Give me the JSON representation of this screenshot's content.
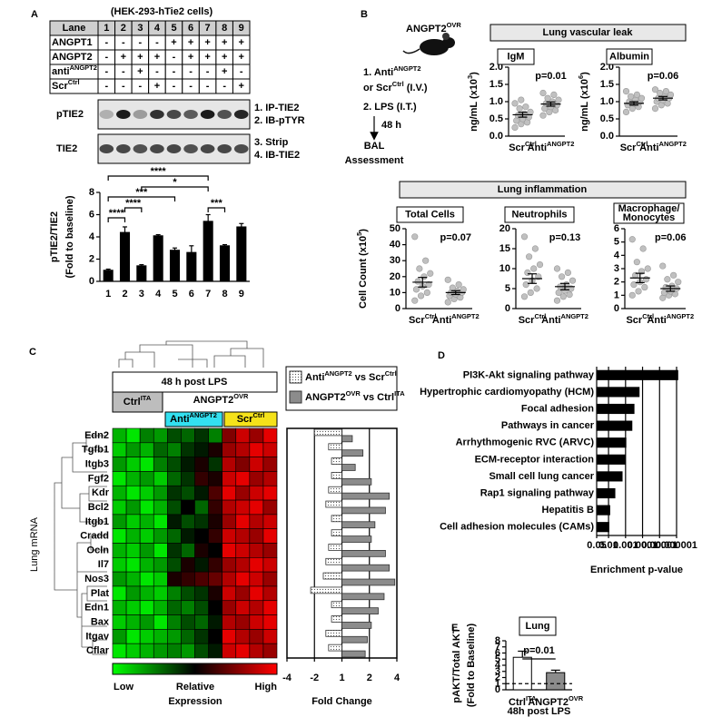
{
  "panel_labels": [
    "A",
    "B",
    "C",
    "D",
    "E"
  ],
  "panel_a": {
    "title": "(HEK-293-hTie2 cells)",
    "table": {
      "header": "Lane",
      "lanes": [
        "1",
        "2",
        "3",
        "4",
        "5",
        "6",
        "7",
        "8",
        "9"
      ],
      "rows": [
        {
          "label": "ANGPT1",
          "cells": [
            "-",
            "-",
            "-",
            "-",
            "+",
            "+",
            "+",
            "+",
            "+"
          ]
        },
        {
          "label": "ANGPT2",
          "cells": [
            "-",
            "+",
            "+",
            "+",
            "-",
            "+",
            "+",
            "+",
            "+"
          ]
        },
        {
          "label": {
            "text": "anti",
            "sup": "ANGPT2"
          },
          "cells": [
            "-",
            "-",
            "+",
            "-",
            "-",
            "-",
            "-",
            "+",
            "-"
          ]
        },
        {
          "label": {
            "text": "Scr",
            "sup": "Ctrl"
          },
          "cells": [
            "-",
            "-",
            "-",
            "+",
            "-",
            "-",
            "-",
            "-",
            "+"
          ]
        }
      ]
    },
    "blots": [
      {
        "label": "pTIE2",
        "steps": [
          "1. IP-TIE2",
          "2. IB-pTYR"
        ]
      },
      {
        "label": "TIE2",
        "steps": [
          "3. Strip",
          "4. IB-TIE2"
        ]
      }
    ]
  },
  "panel_b": {
    "model": {
      "text": "ANGPT2",
      "sup": "OVR"
    },
    "steps": [
      {
        "text": "1. Anti",
        "sup": "ANGPT2"
      },
      {
        "text": "or Scr",
        "sup": "Ctrl",
        "tail": " (I.V.)"
      },
      "2. LPS (I.T.)"
    ],
    "interval": "48 h",
    "outcome": [
      "BAL",
      "Assessment"
    ],
    "groups": [
      "Lung vascular leak",
      "Lung inflammation"
    ]
  },
  "panel_c": {
    "title": "48 h post LPS",
    "groups": [
      {
        "text": "Ctrl",
        "sup": "ITA"
      },
      {
        "text": "ANGPT2",
        "sup": "OVR"
      },
      {
        "text": "Anti",
        "sup": "ANGPT2"
      },
      {
        "text": "Scr",
        "sup": "Ctrl"
      }
    ],
    "ylabel": "Lung mRNA",
    "scale": [
      "Low",
      "Relative",
      "Expression",
      "High"
    ]
  },
  "chart_data": [
    {
      "type": "bar",
      "ylabel": "pTIE2/TIE2",
      "ylabel2": "(Fold to baseline)",
      "categories": [
        "1",
        "2",
        "3",
        "4",
        "5",
        "6",
        "7",
        "8",
        "9"
      ],
      "values": [
        1.0,
        4.4,
        1.4,
        4.1,
        2.8,
        2.6,
        5.4,
        3.2,
        4.9
      ],
      "errors": [
        0.1,
        0.5,
        0.1,
        0.1,
        0.2,
        0.6,
        0.6,
        0.1,
        0.3
      ],
      "color": "#000000",
      "ylim": [
        0,
        8
      ],
      "yticks": [
        0,
        2,
        4,
        6,
        8
      ],
      "annotations": [
        "****",
        "*",
        "***",
        "****",
        "****",
        "***"
      ]
    },
    {
      "type": "dot",
      "title": "IgM",
      "annotation": "p=0.01",
      "ylabel": {
        "text": "ng/mL (x10",
        "sup": "3",
        "tail": ")"
      },
      "categories": [
        {
          "text": "Scr",
          "sup": "Ctrl"
        },
        {
          "text": "Anti",
          "sup": "ANGPT2"
        }
      ],
      "values": [
        [
          0.25,
          0.35,
          0.4,
          0.45,
          0.5,
          0.55,
          0.6,
          0.65,
          0.7,
          0.8,
          0.85,
          0.95,
          1.05
        ],
        [
          0.6,
          0.7,
          0.75,
          0.8,
          0.85,
          0.9,
          0.95,
          1.0,
          1.05,
          1.1,
          1.2,
          1.25
        ]
      ],
      "means": [
        0.62,
        0.93
      ],
      "sems": [
        0.07,
        0.06
      ],
      "color": "#c0c0c0",
      "mean_color": "#e0201a",
      "ylim": [
        0,
        2
      ],
      "yticks": [
        {
          "value": 0,
          "label": "0.0"
        },
        0.5,
        {
          "value": 1,
          "label": "1.0"
        },
        1.5,
        {
          "value": 2,
          "label": "2.0"
        }
      ]
    },
    {
      "type": "dot",
      "title": "Albumin",
      "annotation": "p=0.06",
      "ylabel": {
        "text": "ng/mL (x10",
        "sup": "6",
        "tail": ")"
      },
      "categories": [
        {
          "text": "Scr",
          "sup": "Ctrl"
        },
        {
          "text": "Anti",
          "sup": "ANGPT2"
        }
      ],
      "values": [
        [
          0.7,
          0.8,
          0.85,
          0.9,
          0.95,
          1.0,
          1.0,
          1.05,
          1.1,
          1.15,
          1.2,
          1.3
        ],
        [
          0.8,
          0.9,
          0.95,
          1.0,
          1.05,
          1.1,
          1.1,
          1.15,
          1.2,
          1.25,
          1.3,
          1.35
        ]
      ],
      "means": [
        0.95,
        1.1
      ],
      "sems": [
        0.05,
        0.05
      ],
      "color": "#c0c0c0",
      "mean_color": "#e0201a",
      "ylim": [
        0,
        2
      ],
      "yticks": [
        {
          "value": 0,
          "label": "0.0"
        },
        0.5,
        {
          "value": 1,
          "label": "1.0"
        },
        1.5,
        {
          "value": 2,
          "label": "2.0"
        }
      ]
    },
    {
      "type": "dot",
      "title": "Total Cells",
      "annotation": "p=0.07",
      "ylabel": {
        "text": "Cell Count (x10",
        "sup": "5",
        "tail": ")"
      },
      "categories": [
        {
          "text": "Scr",
          "sup": "Ctrl"
        },
        {
          "text": "Anti",
          "sup": "ANGPT2"
        }
      ],
      "values": [
        [
          5,
          8,
          10,
          12,
          14,
          15,
          17,
          20,
          22,
          25,
          30,
          45
        ],
        [
          4,
          6,
          7,
          8,
          9,
          10,
          10,
          11,
          12,
          13,
          15,
          18
        ]
      ],
      "means": [
        16.5,
        10
      ],
      "sems": [
        3,
        1.2
      ],
      "color": "#c0c0c0",
      "mean_color": "#e0201a",
      "ylim": [
        0,
        50
      ],
      "yticks": [
        0,
        10,
        20,
        30,
        40,
        50
      ]
    },
    {
      "type": "dot",
      "title": "Neutrophils",
      "annotation": "p=0.13",
      "categories": [
        {
          "text": "Scr",
          "sup": "Ctrl"
        },
        {
          "text": "Anti",
          "sup": "ANGPT2"
        }
      ],
      "values": [
        [
          3,
          4,
          5,
          6,
          7,
          8,
          9,
          10,
          11,
          13,
          15,
          18
        ],
        [
          2,
          3,
          3.5,
          4,
          4.5,
          5,
          5.5,
          6,
          7,
          8,
          9,
          10
        ]
      ],
      "means": [
        7.5,
        5.5
      ],
      "sems": [
        1.2,
        0.8
      ],
      "color": "#c0c0c0",
      "mean_color": "#e0201a",
      "ylim": [
        0,
        20
      ],
      "yticks": [
        0,
        5,
        10,
        15,
        20
      ]
    },
    {
      "type": "dot",
      "title": [
        "Macrophage/",
        "Monocytes"
      ],
      "annotation": "p=0.06",
      "categories": [
        {
          "text": "Scr",
          "sup": "Ctrl"
        },
        {
          "text": "Anti",
          "sup": "ANGPT2"
        }
      ],
      "values": [
        [
          1.0,
          1.3,
          1.6,
          1.8,
          2.0,
          2.2,
          2.5,
          2.8,
          3.0,
          3.5,
          4.5,
          5.2
        ],
        [
          0.8,
          1.0,
          1.1,
          1.2,
          1.3,
          1.5,
          1.6,
          1.7,
          2.0,
          2.2,
          2.5,
          3.2
        ]
      ],
      "means": [
        2.3,
        1.5
      ],
      "sems": [
        0.35,
        0.2
      ],
      "color": "#c0c0c0",
      "mean_color": "#e0201a",
      "ylim": [
        0,
        6
      ],
      "yticks": [
        0,
        1,
        2,
        3,
        4,
        5,
        6
      ]
    },
    {
      "type": "heatmap",
      "categories": [
        "Edn2",
        "Tgfb1",
        "Itgb3",
        "Fgf2",
        "Kdr",
        "Bcl2",
        "Itgb1",
        "Cradd",
        "Ocln",
        "Il7",
        "Nos3",
        "Plat",
        "Edn1",
        "Bax",
        "Itgav",
        "Cflar"
      ],
      "zlim": [
        -1,
        1
      ],
      "values": [
        [
          -0.7,
          -0.9,
          -0.5,
          -0.6,
          -0.3,
          -0.4,
          -0.2,
          -0.5,
          0.5,
          0.8,
          0.6,
          0.9
        ],
        [
          -0.8,
          -0.6,
          -0.7,
          -0.4,
          -0.5,
          -0.2,
          -0.1,
          0.1,
          0.6,
          0.7,
          0.9,
          0.8
        ],
        [
          -0.6,
          -0.8,
          -0.9,
          -0.5,
          -0.3,
          -0.1,
          0.1,
          -0.2,
          0.7,
          0.5,
          0.8,
          0.6
        ],
        [
          -0.9,
          -0.7,
          -0.6,
          -0.8,
          -0.4,
          -0.2,
          0.2,
          0.1,
          0.8,
          0.9,
          0.6,
          0.7
        ],
        [
          -0.7,
          -0.9,
          -0.8,
          -0.6,
          -0.2,
          -0.3,
          -0.1,
          0.3,
          0.9,
          0.6,
          0.8,
          0.9
        ],
        [
          -0.8,
          -0.6,
          -0.9,
          -0.7,
          -0.3,
          0.0,
          -0.4,
          0.2,
          0.7,
          0.8,
          0.9,
          0.6
        ],
        [
          -0.6,
          -0.8,
          -0.7,
          -0.9,
          -0.1,
          -0.3,
          -0.2,
          0.1,
          0.6,
          0.9,
          0.7,
          0.8
        ],
        [
          -0.9,
          -0.7,
          -0.8,
          -0.6,
          -0.4,
          -0.1,
          0.0,
          0.2,
          0.8,
          0.7,
          0.6,
          0.9
        ],
        [
          -0.7,
          -0.8,
          -0.6,
          -0.9,
          -0.2,
          -0.4,
          0.1,
          0.0,
          0.9,
          0.8,
          0.7,
          0.6
        ],
        [
          -0.8,
          -0.9,
          -0.7,
          -0.6,
          -0.3,
          0.1,
          -0.1,
          0.2,
          0.6,
          0.7,
          0.9,
          0.8
        ],
        [
          -0.6,
          -0.7,
          -0.9,
          -0.8,
          0.1,
          0.2,
          0.3,
          0.4,
          0.7,
          0.9,
          0.8,
          0.6
        ],
        [
          -0.9,
          -0.6,
          -0.7,
          -0.8,
          -0.5,
          -0.3,
          -0.2,
          0.1,
          0.8,
          0.6,
          0.9,
          0.7
        ],
        [
          -0.7,
          -0.8,
          -0.9,
          -0.7,
          -0.4,
          -0.5,
          -0.3,
          0.0,
          0.6,
          0.8,
          0.7,
          0.9
        ],
        [
          -0.8,
          -0.7,
          -0.6,
          -0.9,
          -0.5,
          -0.3,
          -0.4,
          -0.1,
          0.7,
          0.6,
          0.8,
          0.9
        ],
        [
          -0.6,
          -0.9,
          -0.8,
          -0.7,
          -0.6,
          -0.4,
          -0.2,
          0.0,
          0.9,
          0.7,
          0.6,
          0.8
        ],
        [
          -0.9,
          -0.8,
          -0.7,
          -0.6,
          -0.5,
          -0.6,
          -0.3,
          -0.1,
          0.8,
          0.9,
          0.7,
          0.6
        ]
      ]
    },
    {
      "type": "fold",
      "xlabel": "Fold Change",
      "xscale": "signed-log2",
      "grid": true,
      "xlim": [
        -4,
        4
      ],
      "xticks": [
        -4,
        -2,
        1,
        2,
        4
      ],
      "series": [
        {
          "name": {
            "text": "Anti",
            "sup": "ANGPT2",
            "tail": " vs Scr"
          },
          "name_sup": "Ctrl",
          "color": "#ffffff",
          "hatch": "dots",
          "values": [
            -2.0,
            -1.4,
            -1.3,
            -1.3,
            -1.4,
            -1.5,
            -1.3,
            -1.3,
            -1.4,
            -1.5,
            -1.6,
            -2.2,
            -1.3,
            -1.3,
            -1.5,
            -1.4
          ]
        },
        {
          "name": {
            "text": "ANGPT2",
            "sup": "OVR",
            "tail": " vs Ctrl"
          },
          "name_sup": "ITA",
          "color": "#8c8c8c",
          "values": [
            1.3,
            1.7,
            1.4,
            2.1,
            3.3,
            3.0,
            2.3,
            2.1,
            3.0,
            3.3,
            3.8,
            2.9,
            2.5,
            2.1,
            1.9,
            1.8
          ]
        }
      ]
    },
    {
      "type": "barh",
      "xlabel": "Enrichment p-value",
      "xscale": "log",
      "grid": true,
      "color": "#000000",
      "categories": [
        "PI3K-Akt signaling pathway",
        "Hypertrophic cardiomyopathy (HCM)",
        "Focal adhesion",
        "Pathways in cancer",
        "Arrhythmogenic RVC (ARVC)",
        "ECM-receptor interaction",
        "Small cell lung cancer",
        "Rap1 signaling pathway",
        "Hepatitis B",
        "Cell adhesion molecules (CAMs)"
      ],
      "values": [
        8e-07,
        0.00015,
        0.0003,
        0.0004,
        0.0009,
        0.001,
        0.0015,
        0.004,
        0.008,
        0.009
      ],
      "xlim": [
        0.05,
        1e-06
      ],
      "xticks": [
        0.05,
        0.01,
        0.001,
        0.0001,
        1e-05,
        1e-06
      ]
    },
    {
      "type": "bar",
      "title": "Lung",
      "annotation": "p=0.01",
      "xlabel": "48h post LPS",
      "ylabel": "pAKT/Total AKT",
      "ylabel2": "(Fold to Baseline)",
      "categories": [
        {
          "text": "Ctrl",
          "sup": "ITA"
        },
        {
          "text": "ANGPT2",
          "sup": "OVR"
        }
      ],
      "values": [
        5.3,
        2.8
      ],
      "errors": [
        1.0,
        0.4
      ],
      "colors": [
        "#ffffff",
        "#8c8c8c"
      ],
      "reference_line": 1,
      "ylim": [
        0,
        8
      ],
      "yticks": [
        0,
        1,
        2,
        3,
        4,
        5,
        6,
        7,
        8
      ]
    }
  ]
}
